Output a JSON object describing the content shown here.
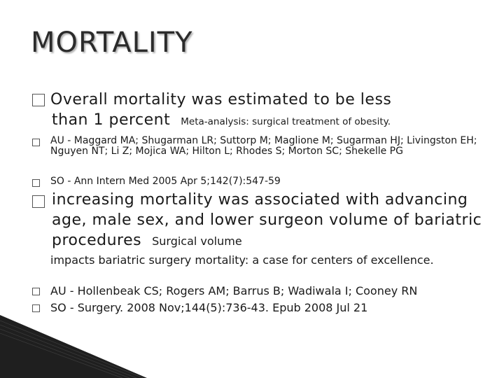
{
  "slide": {
    "title": "MORTALITY",
    "point1": {
      "line1": "Overall mortality was estimated to be less",
      "line2": "than 1 percent",
      "ref": "Meta-analysis: surgical treatment of obesity."
    },
    "sub1": {
      "author": "AU - Maggard MA; Shugarman LR; Suttorp M; Maglione M; Sugarman HJ; Livingston EH; Nguyen NT; Li Z; Mojica WA; Hilton L; Rhodes S; Morton SC; Shekelle PG",
      "source": "SO - Ann Intern Med 2005 Apr 5;142(7):547-59"
    },
    "point2": {
      "text": "increasing mortality was associated with advancing age, male sex, and lower surgeon volume of bariatric procedures",
      "ref": "Surgical volume"
    },
    "sub2": {
      "cont": "impacts bariatric surgery mortality: a case for centers of excellence.",
      "author": "AU - Hollenbeak CS; Rogers AM; Barrus B; Wadiwala I; Cooney RN",
      "source": "SO - Surgery. 2008 Nov;144(5):736-43. Epub 2008 Jul 21"
    }
  },
  "colors": {
    "text": "#1a1a1a",
    "title": "#2b2b2b",
    "decor": "#1f1f1f"
  }
}
